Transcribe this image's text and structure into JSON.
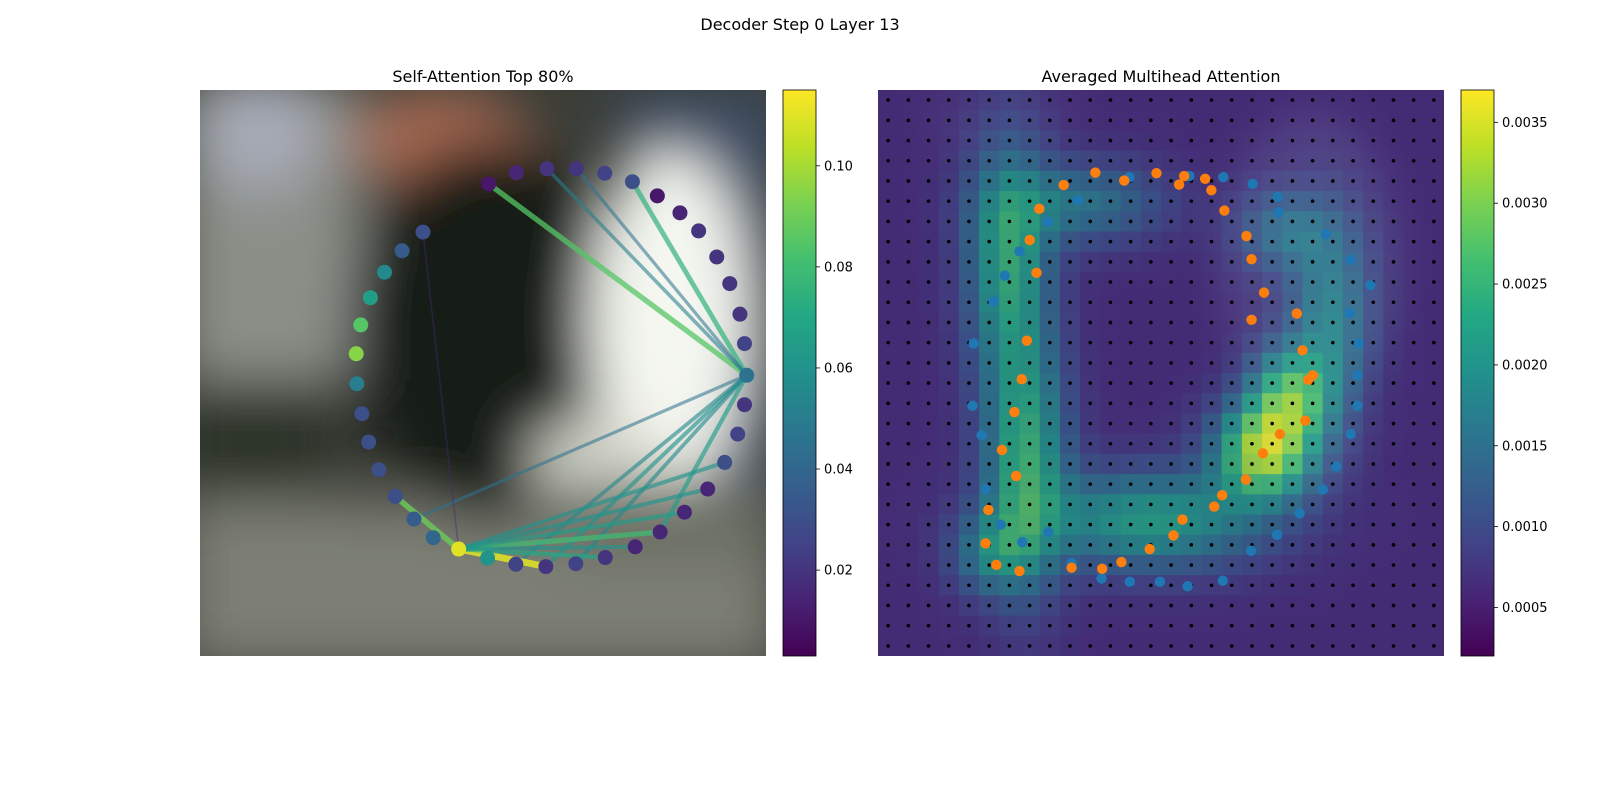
{
  "figure": {
    "title": "Decoder Step 0 Layer 13"
  },
  "chart_data": [
    {
      "type": "scatter",
      "title": "Self-Attention Top 80%",
      "xlabel": "",
      "ylabel": "",
      "colormap": "viridis",
      "colorbar": {
        "min": 0.003,
        "max": 0.115,
        "ticks": [
          0.02,
          0.04,
          0.06,
          0.08,
          0.1
        ],
        "tick_labels": [
          "0.02",
          "0.04",
          "0.06",
          "0.08",
          "0.10"
        ]
      },
      "grid": false,
      "points": [
        {
          "x": 0.394,
          "y": 0.251,
          "v": 0.03
        },
        {
          "x": 0.357,
          "y": 0.284,
          "v": 0.035
        },
        {
          "x": 0.326,
          "y": 0.322,
          "v": 0.055
        },
        {
          "x": 0.301,
          "y": 0.367,
          "v": 0.065
        },
        {
          "x": 0.284,
          "y": 0.415,
          "v": 0.085
        },
        {
          "x": 0.276,
          "y": 0.466,
          "v": 0.095
        },
        {
          "x": 0.277,
          "y": 0.519,
          "v": 0.05
        },
        {
          "x": 0.286,
          "y": 0.572,
          "v": 0.03
        },
        {
          "x": 0.298,
          "y": 0.622,
          "v": 0.03
        },
        {
          "x": 0.316,
          "y": 0.671,
          "v": 0.03
        },
        {
          "x": 0.345,
          "y": 0.718,
          "v": 0.03
        },
        {
          "x": 0.378,
          "y": 0.758,
          "v": 0.035
        },
        {
          "x": 0.412,
          "y": 0.791,
          "v": 0.04
        },
        {
          "x": 0.457,
          "y": 0.811,
          "v": 0.11
        },
        {
          "x": 0.508,
          "y": 0.827,
          "v": 0.06
        },
        {
          "x": 0.558,
          "y": 0.838,
          "v": 0.025
        },
        {
          "x": 0.611,
          "y": 0.842,
          "v": 0.02
        },
        {
          "x": 0.664,
          "y": 0.837,
          "v": 0.025
        },
        {
          "x": 0.716,
          "y": 0.826,
          "v": 0.02
        },
        {
          "x": 0.769,
          "y": 0.807,
          "v": 0.015
        },
        {
          "x": 0.813,
          "y": 0.781,
          "v": 0.015
        },
        {
          "x": 0.856,
          "y": 0.746,
          "v": 0.015
        },
        {
          "x": 0.897,
          "y": 0.705,
          "v": 0.015
        },
        {
          "x": 0.927,
          "y": 0.658,
          "v": 0.03
        },
        {
          "x": 0.95,
          "y": 0.608,
          "v": 0.025
        },
        {
          "x": 0.962,
          "y": 0.556,
          "v": 0.02
        },
        {
          "x": 0.966,
          "y": 0.504,
          "v": 0.045
        },
        {
          "x": 0.962,
          "y": 0.448,
          "v": 0.025
        },
        {
          "x": 0.954,
          "y": 0.396,
          "v": 0.02
        },
        {
          "x": 0.936,
          "y": 0.342,
          "v": 0.02
        },
        {
          "x": 0.913,
          "y": 0.295,
          "v": 0.02
        },
        {
          "x": 0.881,
          "y": 0.249,
          "v": 0.02
        },
        {
          "x": 0.848,
          "y": 0.217,
          "v": 0.015
        },
        {
          "x": 0.808,
          "y": 0.187,
          "v": 0.01
        },
        {
          "x": 0.764,
          "y": 0.162,
          "v": 0.03
        },
        {
          "x": 0.715,
          "y": 0.147,
          "v": 0.025
        },
        {
          "x": 0.665,
          "y": 0.139,
          "v": 0.02
        },
        {
          "x": 0.613,
          "y": 0.139,
          "v": 0.02
        },
        {
          "x": 0.559,
          "y": 0.146,
          "v": 0.015
        },
        {
          "x": 0.51,
          "y": 0.166,
          "v": 0.01
        }
      ],
      "edges": [
        {
          "from": 26,
          "to": 39,
          "v": 0.085
        },
        {
          "from": 26,
          "to": 34,
          "v": 0.075
        },
        {
          "from": 26,
          "to": 36,
          "v": 0.045
        },
        {
          "from": 26,
          "to": 37,
          "v": 0.05
        },
        {
          "from": 26,
          "to": 11,
          "v": 0.045
        },
        {
          "from": 26,
          "to": 16,
          "v": 0.06
        },
        {
          "from": 26,
          "to": 17,
          "v": 0.055
        },
        {
          "from": 26,
          "to": 20,
          "v": 0.065
        },
        {
          "from": 26,
          "to": 15,
          "v": 0.055
        },
        {
          "from": 13,
          "to": 16,
          "v": 0.11
        },
        {
          "from": 13,
          "to": 10,
          "v": 0.09
        },
        {
          "from": 13,
          "to": 20,
          "v": 0.08
        },
        {
          "from": 13,
          "to": 21,
          "v": 0.065
        },
        {
          "from": 13,
          "to": 22,
          "v": 0.06
        },
        {
          "from": 13,
          "to": 23,
          "v": 0.06
        },
        {
          "from": 13,
          "to": 18,
          "v": 0.07
        },
        {
          "from": 13,
          "to": 19,
          "v": 0.06
        },
        {
          "from": 13,
          "to": 0,
          "v": 0.015
        }
      ]
    },
    {
      "type": "heatmap",
      "title": "Averaged Multihead Attention",
      "xlabel": "",
      "ylabel": "",
      "colormap": "viridis",
      "colorbar": {
        "min": 0.0002,
        "max": 0.0037,
        "ticks": [
          0.0005,
          0.001,
          0.0015,
          0.002,
          0.0025,
          0.003,
          0.0035
        ],
        "tick_labels": [
          "0.0005",
          "0.0010",
          "0.0015",
          "0.0020",
          "0.0025",
          "0.0030",
          "0.0035"
        ]
      },
      "grid_size": 28,
      "blobs": [
        {
          "x": 0.23,
          "y": 0.3,
          "sx": 0.05,
          "sy": 0.14,
          "v": 0.0017
        },
        {
          "x": 0.26,
          "y": 0.65,
          "sx": 0.05,
          "sy": 0.15,
          "v": 0.0018
        },
        {
          "x": 0.36,
          "y": 0.2,
          "sx": 0.1,
          "sy": 0.05,
          "v": 0.001
        },
        {
          "x": 0.48,
          "y": 0.76,
          "sx": 0.14,
          "sy": 0.06,
          "v": 0.0016
        },
        {
          "x": 0.68,
          "y": 0.64,
          "sx": 0.06,
          "sy": 0.06,
          "v": 0.0025
        },
        {
          "x": 0.73,
          "y": 0.54,
          "sx": 0.05,
          "sy": 0.06,
          "v": 0.0018
        },
        {
          "x": 0.8,
          "y": 0.4,
          "sx": 0.05,
          "sy": 0.12,
          "v": 0.0011
        },
        {
          "x": 0.72,
          "y": 0.25,
          "sx": 0.06,
          "sy": 0.05,
          "v": 0.0008
        },
        {
          "x": 0.2,
          "y": 0.82,
          "sx": 0.05,
          "sy": 0.05,
          "v": 0.001
        }
      ],
      "series": [
        {
          "name": "",
          "color": "#1f77b4",
          "points": [
            {
              "x": 0.444,
              "y": 0.154
            },
            {
              "x": 0.55,
              "y": 0.152
            },
            {
              "x": 0.61,
              "y": 0.154
            },
            {
              "x": 0.662,
              "y": 0.166
            },
            {
              "x": 0.706,
              "y": 0.189
            },
            {
              "x": 0.353,
              "y": 0.195
            },
            {
              "x": 0.708,
              "y": 0.216
            },
            {
              "x": 0.3,
              "y": 0.233
            },
            {
              "x": 0.791,
              "y": 0.255
            },
            {
              "x": 0.25,
              "y": 0.285
            },
            {
              "x": 0.224,
              "y": 0.328
            },
            {
              "x": 0.835,
              "y": 0.3
            },
            {
              "x": 0.204,
              "y": 0.374
            },
            {
              "x": 0.87,
              "y": 0.345
            },
            {
              "x": 0.833,
              "y": 0.394
            },
            {
              "x": 0.169,
              "y": 0.448
            },
            {
              "x": 0.849,
              "y": 0.448
            },
            {
              "x": 0.847,
              "y": 0.504
            },
            {
              "x": 0.167,
              "y": 0.558
            },
            {
              "x": 0.847,
              "y": 0.558
            },
            {
              "x": 0.835,
              "y": 0.608
            },
            {
              "x": 0.183,
              "y": 0.61
            },
            {
              "x": 0.81,
              "y": 0.665
            },
            {
              "x": 0.19,
              "y": 0.705
            },
            {
              "x": 0.217,
              "y": 0.768
            },
            {
              "x": 0.255,
              "y": 0.799
            },
            {
              "x": 0.301,
              "y": 0.781
            },
            {
              "x": 0.786,
              "y": 0.706
            },
            {
              "x": 0.745,
              "y": 0.748
            },
            {
              "x": 0.705,
              "y": 0.786
            },
            {
              "x": 0.659,
              "y": 0.814
            },
            {
              "x": 0.342,
              "y": 0.836
            },
            {
              "x": 0.395,
              "y": 0.863
            },
            {
              "x": 0.445,
              "y": 0.869
            },
            {
              "x": 0.498,
              "y": 0.869
            },
            {
              "x": 0.547,
              "y": 0.877
            },
            {
              "x": 0.609,
              "y": 0.867
            }
          ]
        },
        {
          "name": "",
          "color": "#ff7f0e",
          "points": [
            {
              "x": 0.328,
              "y": 0.168
            },
            {
              "x": 0.384,
              "y": 0.146
            },
            {
              "x": 0.435,
              "y": 0.16
            },
            {
              "x": 0.492,
              "y": 0.147
            },
            {
              "x": 0.532,
              "y": 0.167
            },
            {
              "x": 0.541,
              "y": 0.152
            },
            {
              "x": 0.578,
              "y": 0.157
            },
            {
              "x": 0.589,
              "y": 0.177
            },
            {
              "x": 0.612,
              "y": 0.213
            },
            {
              "x": 0.285,
              "y": 0.21
            },
            {
              "x": 0.268,
              "y": 0.265
            },
            {
              "x": 0.28,
              "y": 0.323
            },
            {
              "x": 0.651,
              "y": 0.258
            },
            {
              "x": 0.66,
              "y": 0.299
            },
            {
              "x": 0.682,
              "y": 0.358
            },
            {
              "x": 0.66,
              "y": 0.406
            },
            {
              "x": 0.74,
              "y": 0.395
            },
            {
              "x": 0.75,
              "y": 0.46
            },
            {
              "x": 0.768,
              "y": 0.504
            },
            {
              "x": 0.76,
              "y": 0.512
            },
            {
              "x": 0.755,
              "y": 0.584
            },
            {
              "x": 0.71,
              "y": 0.608
            },
            {
              "x": 0.68,
              "y": 0.642
            },
            {
              "x": 0.65,
              "y": 0.688
            },
            {
              "x": 0.608,
              "y": 0.716
            },
            {
              "x": 0.594,
              "y": 0.736
            },
            {
              "x": 0.538,
              "y": 0.759
            },
            {
              "x": 0.522,
              "y": 0.787
            },
            {
              "x": 0.48,
              "y": 0.811
            },
            {
              "x": 0.43,
              "y": 0.834
            },
            {
              "x": 0.396,
              "y": 0.846
            },
            {
              "x": 0.342,
              "y": 0.844
            },
            {
              "x": 0.25,
              "y": 0.85
            },
            {
              "x": 0.209,
              "y": 0.839
            },
            {
              "x": 0.19,
              "y": 0.801
            },
            {
              "x": 0.195,
              "y": 0.742
            },
            {
              "x": 0.244,
              "y": 0.682
            },
            {
              "x": 0.219,
              "y": 0.636
            },
            {
              "x": 0.241,
              "y": 0.569
            },
            {
              "x": 0.254,
              "y": 0.511
            },
            {
              "x": 0.263,
              "y": 0.443
            }
          ]
        }
      ]
    }
  ]
}
